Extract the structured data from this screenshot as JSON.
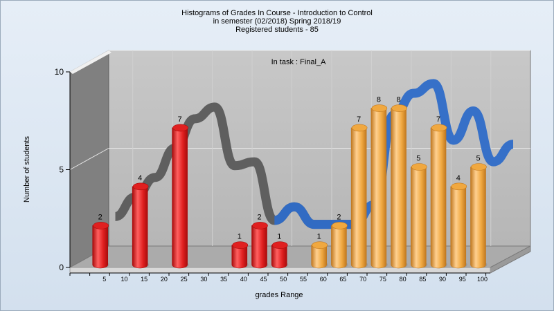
{
  "chart_data": {
    "type": "bar",
    "title": [
      "Histograms of Grades  In Course - Introduction to Control",
      "in semester  (02/2018) Spring 2018/19",
      "Registered students - 85"
    ],
    "annotation": "In task : Final_A",
    "xlabel": "grades Range",
    "ylabel": "Number of students",
    "ylim": [
      0,
      10
    ],
    "y_ticks": [
      0,
      5,
      10
    ],
    "x_ticks": [
      5,
      10,
      15,
      20,
      25,
      30,
      35,
      40,
      45,
      50,
      55,
      60,
      65,
      70,
      75,
      80,
      85,
      90,
      95,
      100
    ],
    "bars": [
      {
        "x": 5,
        "value": 2,
        "color": "#e02020"
      },
      {
        "x": 15,
        "value": 4,
        "color": "#e02020"
      },
      {
        "x": 25,
        "value": 7,
        "color": "#e02020"
      },
      {
        "x": 40,
        "value": 1,
        "color": "#e02020"
      },
      {
        "x": 45,
        "value": 2,
        "color": "#e02020"
      },
      {
        "x": 50,
        "value": 1,
        "color": "#e02020"
      },
      {
        "x": 60,
        "value": 1,
        "color": "#f0a840"
      },
      {
        "x": 65,
        "value": 2,
        "color": "#f0a840"
      },
      {
        "x": 70,
        "value": 7,
        "color": "#f0a840"
      },
      {
        "x": 75,
        "value": 8,
        "color": "#f0a840"
      },
      {
        "x": 80,
        "value": 8,
        "color": "#f0a840"
      },
      {
        "x": 85,
        "value": 5,
        "color": "#f0a840"
      },
      {
        "x": 90,
        "value": 7,
        "color": "#f0a840"
      },
      {
        "x": 95,
        "value": 4,
        "color": "#f0a840"
      },
      {
        "x": 100,
        "value": 5,
        "color": "#f0a840"
      }
    ],
    "curves": [
      {
        "color": "#5a5a5a",
        "points": [
          [
            5,
            2
          ],
          [
            10,
            3
          ],
          [
            15,
            4
          ],
          [
            20,
            5.5
          ],
          [
            25,
            7
          ],
          [
            30,
            7.6
          ],
          [
            35,
            4.6
          ],
          [
            40,
            4.8
          ],
          [
            45,
            1.8
          ],
          [
            50,
            2.5
          ],
          [
            55,
            1.6
          ],
          [
            60,
            1.6
          ],
          [
            65,
            1.6
          ]
        ]
      },
      {
        "color": "#2e6cc8",
        "points": [
          [
            45,
            1.8
          ],
          [
            50,
            2.5
          ],
          [
            55,
            1.6
          ],
          [
            60,
            1.6
          ],
          [
            65,
            1.6
          ],
          [
            70,
            2.6
          ],
          [
            75,
            7.2
          ],
          [
            80,
            8.3
          ],
          [
            85,
            8.8
          ],
          [
            90,
            5.9
          ],
          [
            95,
            7.4
          ],
          [
            100,
            4.8
          ],
          [
            105,
            5.7
          ]
        ]
      }
    ],
    "colors": {
      "fail": "#e02020",
      "pass": "#f0a840",
      "wall": "#c0c0c0",
      "side_wall": "#808080"
    },
    "grid": true,
    "legend": "none"
  }
}
